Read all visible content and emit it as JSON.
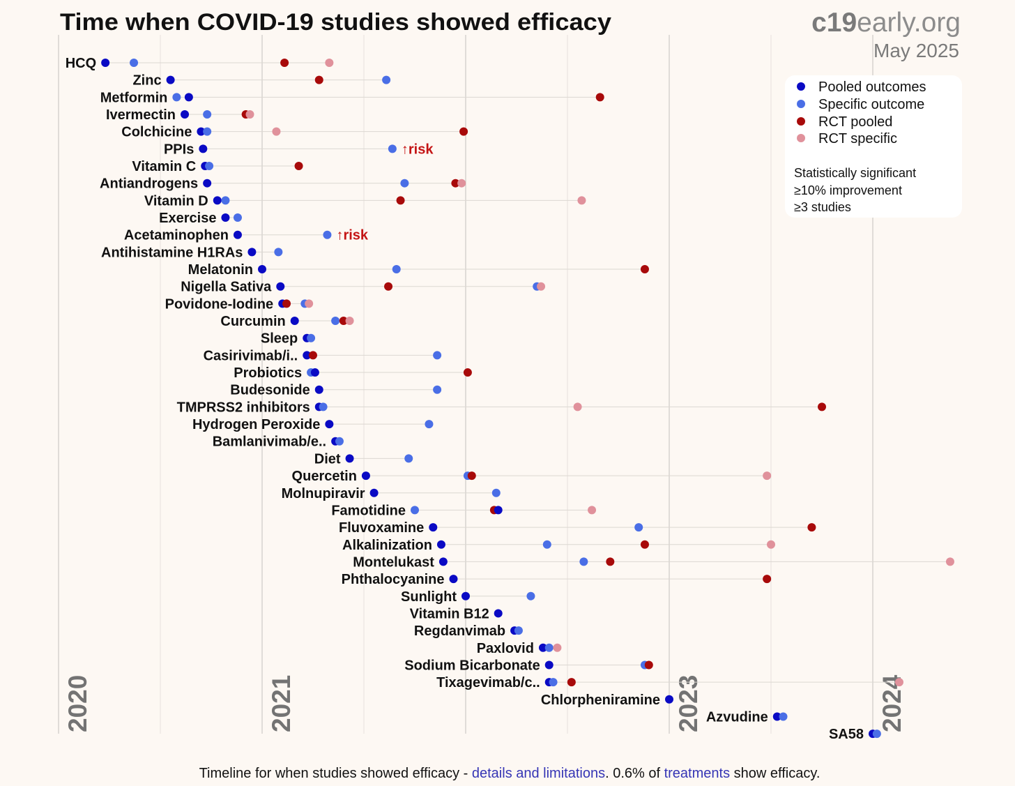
{
  "logo": {
    "bold": "c19",
    "light": "early.org"
  },
  "date": "May 2025",
  "legend": {
    "notes": [
      "Statistically significant",
      "≥10% improvement",
      "≥3 studies"
    ]
  },
  "footer": {
    "pre": "Timeline for when studies showed efficacy - ",
    "link1": "details and limitations",
    "mid": ". 0.6% of ",
    "link2": "treatments",
    "post": " show efficacy."
  },
  "chart_data": {
    "type": "scatter",
    "title": "Time when COVID-19 studies showed efficacy",
    "xlabel": "",
    "ylabel": "",
    "xlim": [
      2020,
      2024.45
    ],
    "x_ticks": [
      {
        "label": "2020",
        "value": 2020
      },
      {
        "label": "2021",
        "value": 2021
      },
      {
        "label": "2023",
        "value": 2023
      },
      {
        "label": "2024",
        "value": 2024
      }
    ],
    "grid": true,
    "legend_position": "top-right",
    "series": [
      {
        "key": "pooled",
        "name": "Pooled outcomes",
        "color": "#0a0ac4"
      },
      {
        "key": "specific",
        "name": "Specific outcome",
        "color": "#4a6ee6"
      },
      {
        "key": "rct_pooled",
        "name": "RCT pooled",
        "color": "#a80a0a"
      },
      {
        "key": "rct_specific",
        "name": "RCT specific",
        "color": "#e0919b"
      }
    ],
    "warning_color": "#c41414",
    "treatments": [
      {
        "name": "HCQ",
        "pooled": 2020.23,
        "specific": 2020.37,
        "rct_pooled": 2021.11,
        "rct_specific": 2021.33
      },
      {
        "name": "Zinc",
        "pooled": 2020.55,
        "specific": 2021.61,
        "rct_pooled": 2021.28,
        "rct_specific": null
      },
      {
        "name": "Metformin",
        "pooled": 2020.64,
        "specific": 2020.58,
        "rct_pooled": 2022.66,
        "rct_specific": null
      },
      {
        "name": "Ivermectin",
        "pooled": 2020.62,
        "specific": 2020.73,
        "rct_pooled": 2020.92,
        "rct_specific": 2020.94
      },
      {
        "name": "Colchicine",
        "pooled": 2020.7,
        "specific": 2020.73,
        "rct_pooled": 2021.99,
        "rct_specific": 2021.07
      },
      {
        "name": "PPIs",
        "pooled": 2020.71,
        "specific": 2021.64,
        "rct_pooled": null,
        "rct_specific": null,
        "warning": "↑risk"
      },
      {
        "name": "Vitamin C",
        "pooled": 2020.72,
        "specific": 2020.74,
        "rct_pooled": 2021.18,
        "rct_specific": null
      },
      {
        "name": "Antiandrogens",
        "pooled": 2020.73,
        "specific": 2021.7,
        "rct_pooled": 2021.95,
        "rct_specific": 2021.98
      },
      {
        "name": "Vitamin D",
        "pooled": 2020.78,
        "specific": 2020.82,
        "rct_pooled": 2021.68,
        "rct_specific": 2022.57
      },
      {
        "name": "Exercise",
        "pooled": 2020.82,
        "specific": 2020.88,
        "rct_pooled": null,
        "rct_specific": null
      },
      {
        "name": "Acetaminophen",
        "pooled": 2020.88,
        "specific": 2021.32,
        "rct_pooled": null,
        "rct_specific": null,
        "warning": "↑risk"
      },
      {
        "name": "Antihistamine H1RAs",
        "pooled": 2020.95,
        "specific": 2021.08,
        "rct_pooled": null,
        "rct_specific": null
      },
      {
        "name": "Melatonin",
        "pooled": 2021.0,
        "specific": 2021.66,
        "rct_pooled": 2022.88,
        "rct_specific": null
      },
      {
        "name": "Nigella Sativa",
        "pooled": 2021.09,
        "specific": 2022.35,
        "rct_pooled": 2021.62,
        "rct_specific": 2022.37
      },
      {
        "name": "Povidone-Iodine",
        "pooled": 2021.1,
        "specific": 2021.21,
        "rct_pooled": 2021.12,
        "rct_specific": 2021.23
      },
      {
        "name": "Curcumin",
        "pooled": 2021.16,
        "specific": 2021.36,
        "rct_pooled": 2021.4,
        "rct_specific": 2021.43
      },
      {
        "name": "Sleep",
        "pooled": 2021.22,
        "specific": 2021.24,
        "rct_pooled": null,
        "rct_specific": null
      },
      {
        "name": "Casirivimab/i..",
        "pooled": 2021.22,
        "specific": 2021.86,
        "rct_pooled": 2021.25,
        "rct_specific": null
      },
      {
        "name": "Probiotics",
        "pooled": 2021.26,
        "specific": 2021.24,
        "rct_pooled": 2022.01,
        "rct_specific": null
      },
      {
        "name": "Budesonide",
        "pooled": 2021.28,
        "specific": 2021.86,
        "rct_pooled": null,
        "rct_specific": null
      },
      {
        "name": "TMPRSS2 inhibitors",
        "pooled": 2021.28,
        "specific": 2021.3,
        "rct_pooled": 2023.75,
        "rct_specific": 2022.55
      },
      {
        "name": "Hydrogen Peroxide",
        "pooled": 2021.33,
        "specific": 2021.82,
        "rct_pooled": null,
        "rct_specific": null
      },
      {
        "name": "Bamlanivimab/e..",
        "pooled": 2021.36,
        "specific": 2021.38,
        "rct_pooled": null,
        "rct_specific": null
      },
      {
        "name": "Diet",
        "pooled": 2021.43,
        "specific": 2021.72,
        "rct_pooled": null,
        "rct_specific": null
      },
      {
        "name": "Quercetin",
        "pooled": 2021.51,
        "specific": 2022.01,
        "rct_pooled": 2022.03,
        "rct_specific": 2023.48
      },
      {
        "name": "Molnupiravir",
        "pooled": 2021.55,
        "specific": 2022.15,
        "rct_pooled": null,
        "rct_specific": null
      },
      {
        "name": "Famotidine",
        "pooled": 2022.16,
        "specific": 2021.75,
        "rct_pooled": 2022.14,
        "rct_specific": 2022.62
      },
      {
        "name": "Fluvoxamine",
        "pooled": 2021.84,
        "specific": 2022.85,
        "rct_pooled": 2023.7,
        "rct_specific": null
      },
      {
        "name": "Alkalinization",
        "pooled": 2021.88,
        "specific": 2022.4,
        "rct_pooled": 2022.88,
        "rct_specific": 2023.5
      },
      {
        "name": "Montelukast",
        "pooled": 2021.89,
        "specific": 2022.58,
        "rct_pooled": 2022.71,
        "rct_specific": 2024.38
      },
      {
        "name": "Phthalocyanine",
        "pooled": 2021.94,
        "specific": null,
        "rct_pooled": 2023.48,
        "rct_specific": null
      },
      {
        "name": "Sunlight",
        "pooled": 2022.0,
        "specific": 2022.32,
        "rct_pooled": null,
        "rct_specific": null
      },
      {
        "name": "Vitamin B12",
        "pooled": 2022.16,
        "specific": null,
        "rct_pooled": null,
        "rct_specific": null
      },
      {
        "name": "Regdanvimab",
        "pooled": 2022.24,
        "specific": 2022.26,
        "rct_pooled": null,
        "rct_specific": null
      },
      {
        "name": "Paxlovid",
        "pooled": 2022.38,
        "specific": 2022.41,
        "rct_pooled": null,
        "rct_specific": 2022.45
      },
      {
        "name": "Sodium Bicarbonate",
        "pooled": 2022.41,
        "specific": 2022.88,
        "rct_pooled": 2022.9,
        "rct_specific": null
      },
      {
        "name": "Tixagevimab/c..",
        "pooled": 2022.41,
        "specific": 2022.43,
        "rct_pooled": 2022.52,
        "rct_specific": 2024.13
      },
      {
        "name": "Chlorpheniramine",
        "pooled": 2023.0,
        "specific": null,
        "rct_pooled": null,
        "rct_specific": null
      },
      {
        "name": "Azvudine",
        "pooled": 2023.53,
        "specific": 2023.56,
        "rct_pooled": null,
        "rct_specific": null
      },
      {
        "name": "SA58",
        "pooled": 2024.0,
        "specific": 2024.02,
        "rct_pooled": null,
        "rct_specific": null
      }
    ]
  }
}
